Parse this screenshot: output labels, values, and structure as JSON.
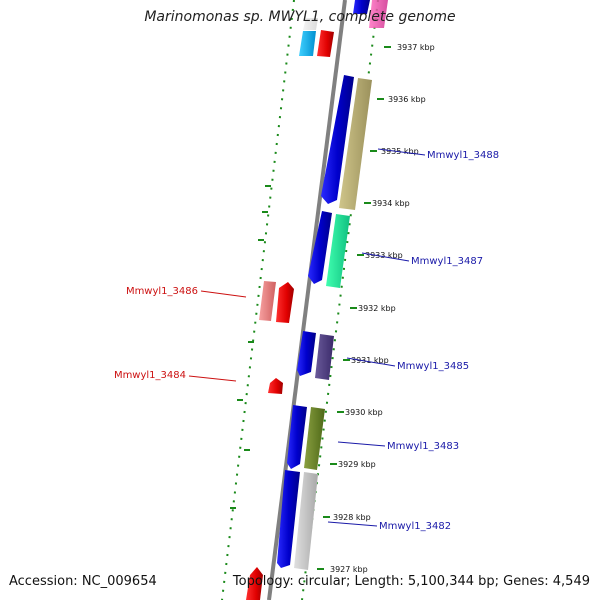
{
  "title": "Marinomonas sp. MWYL1, complete genome",
  "footer": {
    "accession": "Accession: NC_009654",
    "topology": "Topology: circular; Length: 5,100,344 bp; Genes: 4,549"
  },
  "ticks": [
    {
      "label": "3937 kbp"
    },
    {
      "label": "3936 kbp"
    },
    {
      "label": "3935 kbp"
    },
    {
      "label": "3934 kbp"
    },
    {
      "label": "3933 kbp"
    },
    {
      "label": "3932 kbp"
    },
    {
      "label": "3931 kbp"
    },
    {
      "label": "3930 kbp"
    },
    {
      "label": "3929 kbp"
    },
    {
      "label": "3928 kbp"
    },
    {
      "label": "3927 kbp"
    }
  ],
  "gene_labels": [
    {
      "name": "Mmwyl1_3488",
      "strand": "forward",
      "color": "#1a1aa8"
    },
    {
      "name": "Mmwyl1_3487",
      "strand": "forward",
      "color": "#1a1aa8"
    },
    {
      "name": "Mmwyl1_3486",
      "strand": "reverse",
      "color": "#cc1111"
    },
    {
      "name": "Mmwyl1_3485",
      "strand": "forward",
      "color": "#1a1aa8"
    },
    {
      "name": "Mmwyl1_3484",
      "strand": "reverse",
      "color": "#cc1111"
    },
    {
      "name": "Mmwyl1_3483",
      "strand": "forward",
      "color": "#1a1aa8"
    },
    {
      "name": "Mmwyl1_3482",
      "strand": "forward",
      "color": "#1a1aa8"
    }
  ],
  "colors": {
    "backbone": "#808080",
    "forward_gene": "#0000ee",
    "reverse_gene": "#ee0000",
    "ring_dots": "#1a8a1a",
    "forward_label": "#1a1aa8",
    "reverse_label": "#cc1111"
  }
}
